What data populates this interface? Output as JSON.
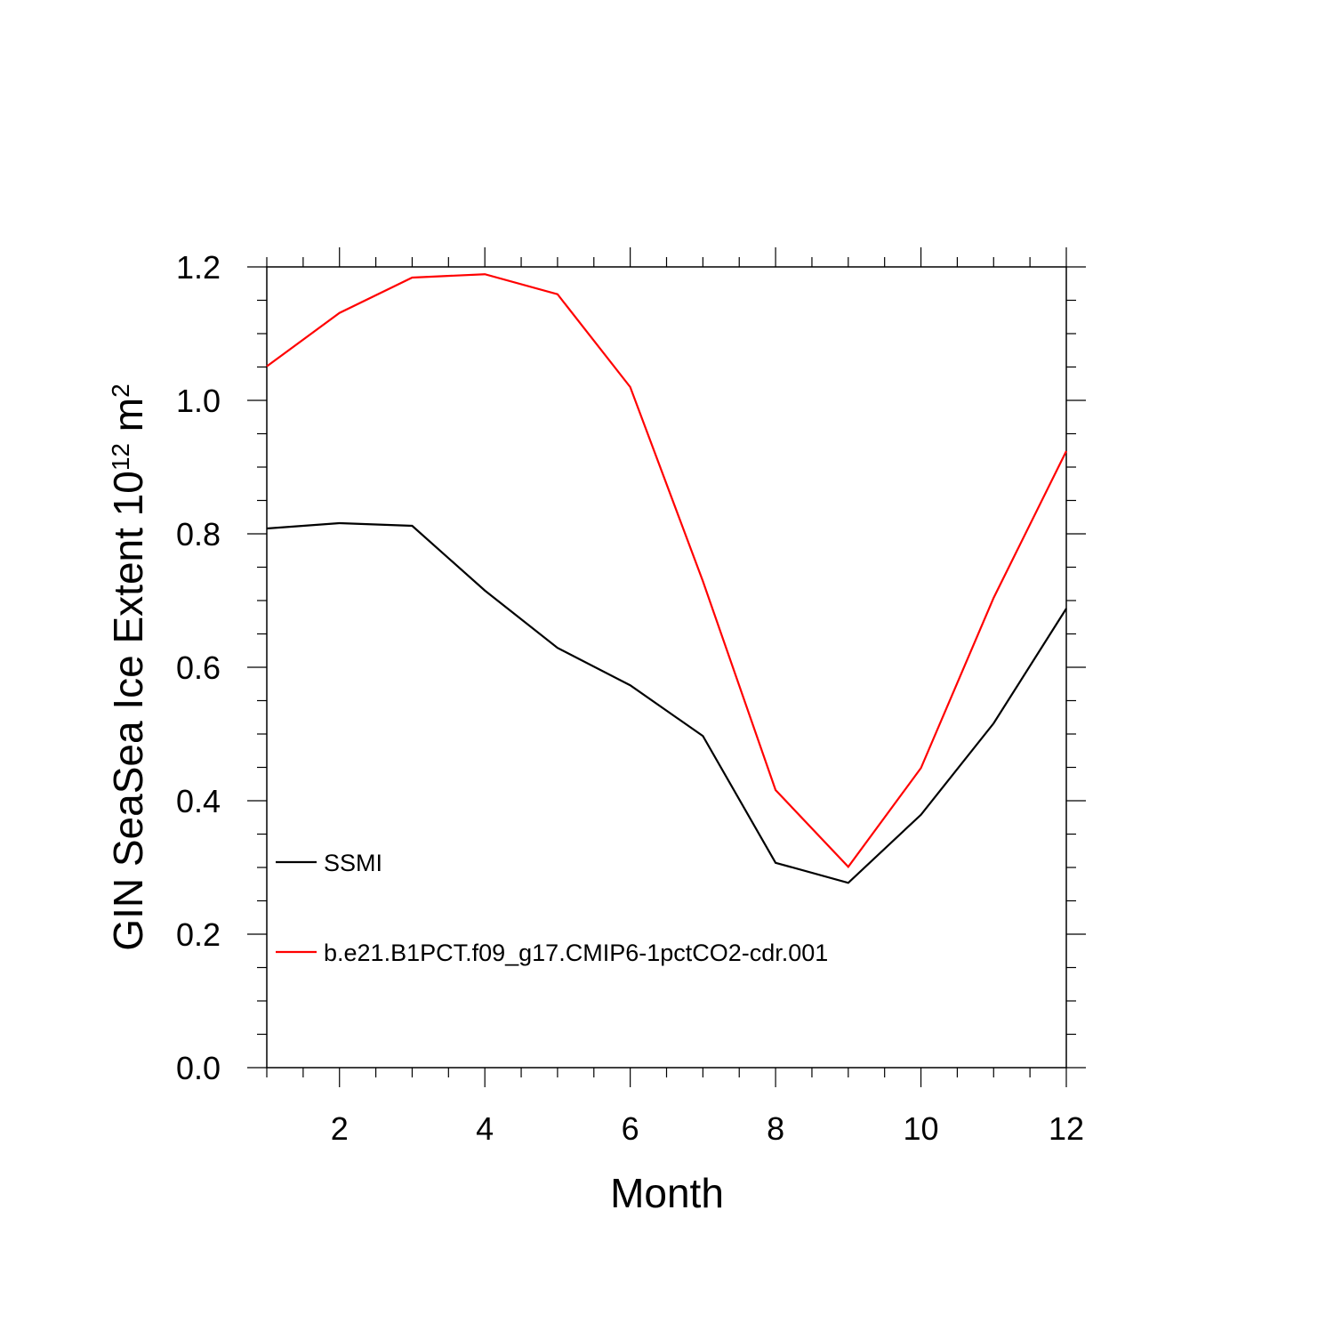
{
  "chart_data": {
    "type": "line",
    "x_label": "Month",
    "y_label": [
      {
        "text": "GIN SeaSea Ice Extent 10"
      },
      {
        "sup": "12"
      },
      {
        "text": " m"
      },
      {
        "sup": "2"
      }
    ],
    "x": [
      1,
      2,
      3,
      4,
      5,
      6,
      7,
      8,
      9,
      10,
      11,
      12
    ],
    "series": [
      {
        "name": "SSMI",
        "color": "#000000",
        "values": [
          0.808,
          0.816,
          0.812,
          0.715,
          0.629,
          0.573,
          0.497,
          0.307,
          0.277,
          0.379,
          0.516,
          0.688
        ]
      },
      {
        "name": "b.e21.B1PCT.f09_g17.CMIP6-1pctCO2-cdr.001",
        "color": "#ff0000",
        "values": [
          1.051,
          1.131,
          1.184,
          1.189,
          1.159,
          1.02,
          0.729,
          0.416,
          0.301,
          0.449,
          0.704,
          0.924
        ]
      }
    ],
    "xlim": [
      1,
      12
    ],
    "xticks": [
      2,
      4,
      6,
      8,
      10,
      12
    ],
    "xminorticks": [
      1,
      1.5,
      2.5,
      3,
      3.5,
      4.5,
      5,
      5.5,
      6.5,
      7,
      7.5,
      8.5,
      9,
      9.5,
      10.5,
      11,
      11.5
    ],
    "ylim": [
      0,
      1.2
    ],
    "yticks": [
      {
        "value": 0,
        "label": "0.0"
      },
      0.2,
      0.4,
      0.6,
      0.8,
      {
        "value": 1,
        "label": "1.0"
      },
      1.2
    ],
    "yminorticks": [
      0.05,
      0.1,
      0.15,
      0.25,
      0.3,
      0.35,
      0.45,
      0.5,
      0.55,
      0.65,
      0.7,
      0.75,
      0.85,
      0.9,
      0.95,
      1.05,
      1.1,
      1.15
    ],
    "legend": "lower left",
    "grid": false
  }
}
